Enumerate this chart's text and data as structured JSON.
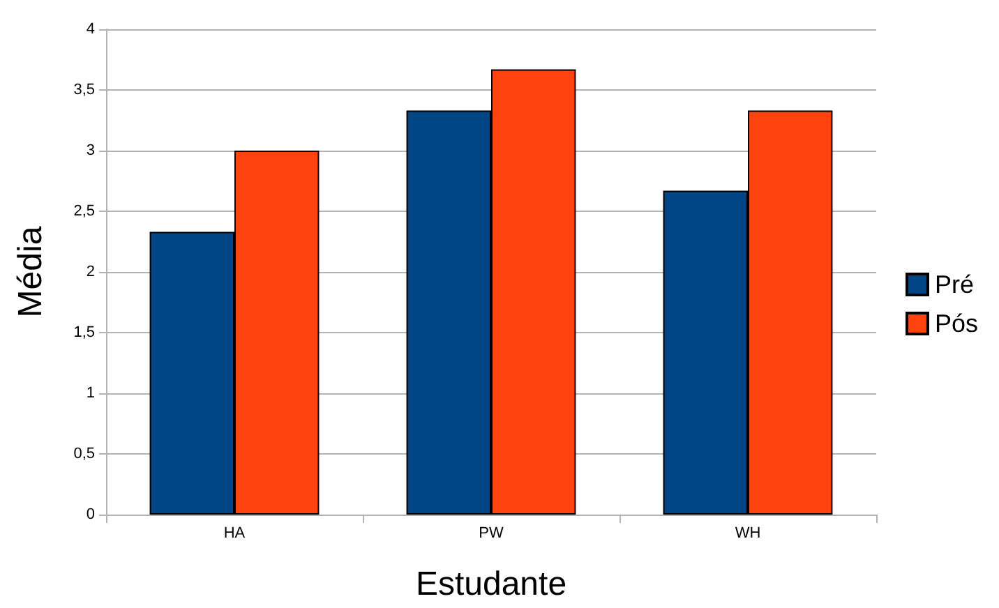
{
  "chart_data": {
    "type": "bar",
    "xlabel": "Estudante",
    "ylabel": "Média",
    "categories": [
      "HA",
      "PW",
      "WH"
    ],
    "series": [
      {
        "name": "Pré",
        "color": "#004586",
        "values": [
          2.33,
          3.33,
          2.67
        ]
      },
      {
        "name": "Pós",
        "color": "#ff420e",
        "values": [
          3.0,
          3.67,
          3.33
        ]
      }
    ],
    "ylim": [
      0,
      4
    ],
    "yticks": [
      0,
      {
        "value": 0.5,
        "label": "0,5"
      },
      1,
      {
        "value": 1.5,
        "label": "1,5"
      },
      2,
      {
        "value": 2.5,
        "label": "2,5"
      },
      3,
      {
        "value": 3.5,
        "label": "3,5"
      },
      4
    ],
    "grid": "y",
    "legend": "right"
  }
}
